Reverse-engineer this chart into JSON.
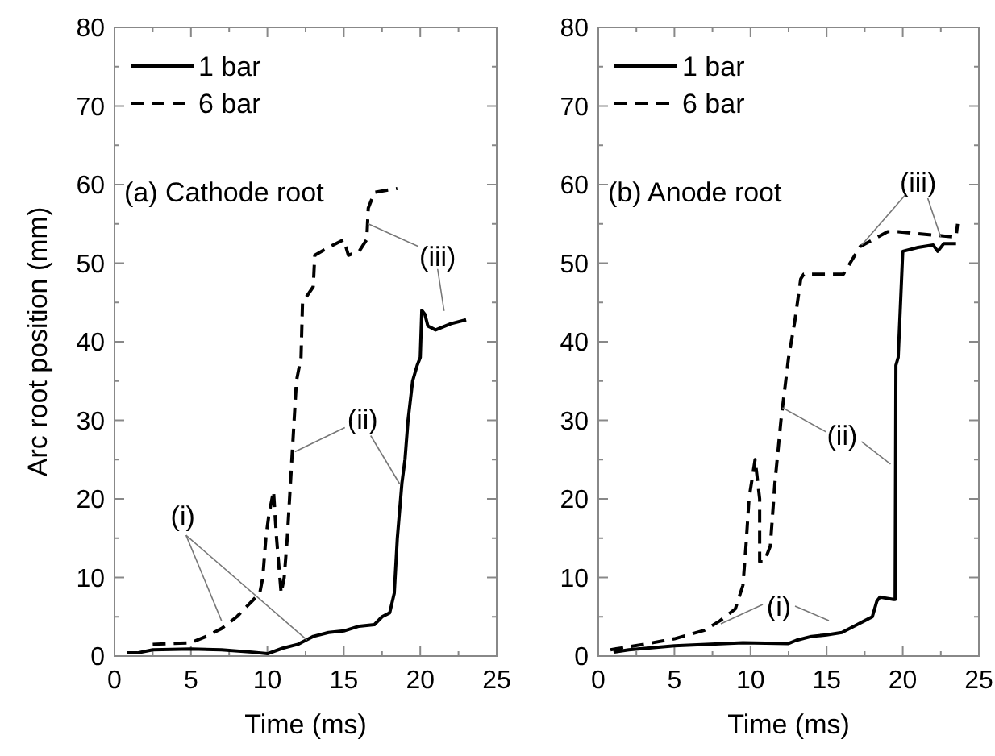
{
  "chart_data": [
    {
      "type": "line",
      "xlabel": "Time (ms)",
      "ylabel": "Arc root position (mm)",
      "xlim": [
        0,
        25
      ],
      "ylim": [
        0,
        80
      ],
      "xticks": [
        0,
        {
          "value": 2.5,
          "label": null
        },
        5,
        {
          "value": 7.5,
          "label": null
        },
        10,
        {
          "value": 12.5,
          "label": null
        },
        15,
        {
          "value": 17.5,
          "label": null
        },
        20,
        {
          "value": 22.5,
          "label": null
        },
        25
      ],
      "yticks": [
        0,
        {
          "value": 5,
          "label": null
        },
        10,
        {
          "value": 15,
          "label": null
        },
        20,
        {
          "value": 25,
          "label": null
        },
        30,
        {
          "value": 35,
          "label": null
        },
        40,
        {
          "value": 45,
          "label": null
        },
        50,
        {
          "value": 55,
          "label": null
        },
        60,
        {
          "value": 65,
          "label": null
        },
        70,
        {
          "value": 75,
          "label": null
        },
        80
      ],
      "legend": "top left",
      "grid": false,
      "annotations": [
        "(a) Cathode root",
        {
          "text": "(i)",
          "x": 7,
          "y": 4.5
        },
        {
          "text": "(ii)",
          "x": 11.8,
          "y": 26
        },
        {
          "text": "(iii)",
          "x": 16.6,
          "y": 55
        }
      ],
      "series": [
        {
          "name": "1 bar",
          "color": "#000000",
          "line_style": "solid",
          "x": [
            0.8,
            1.5,
            2.5,
            5,
            7,
            9,
            10,
            11,
            12,
            12.5,
            13,
            14,
            15,
            16,
            17,
            17.5,
            18,
            18.3,
            18.5,
            18.8,
            19,
            19.2,
            19.5,
            19.8,
            20,
            20.1,
            20.3,
            20.5,
            21,
            22,
            23
          ],
          "values": [
            0.4,
            0.4,
            0.8,
            0.9,
            0.8,
            0.5,
            0.3,
            1,
            1.5,
            2,
            2.5,
            3,
            3.2,
            3.8,
            4,
            5,
            5.5,
            8,
            15,
            22,
            25,
            30,
            35,
            37,
            38,
            44,
            43.5,
            42,
            41.5,
            42.3,
            42.8
          ]
        },
        {
          "name": "6 bar",
          "color": "#000000",
          "line_style": "dashed",
          "x": [
            2.5,
            5,
            6,
            7,
            8,
            9,
            9.5,
            9.7,
            9.9,
            10.1,
            10.4,
            10.6,
            10.9,
            11.1,
            11.3,
            11.6,
            11.9,
            12.2,
            12.3,
            13,
            13.1,
            14,
            15,
            15.3,
            16,
            16.5,
            16.6,
            17,
            18.5
          ],
          "values": [
            1.5,
            1.7,
            2.5,
            3.5,
            5,
            7,
            8,
            10,
            15,
            18,
            21,
            15,
            8,
            10,
            15,
            25,
            35,
            38,
            45,
            47,
            51,
            52,
            53,
            51,
            51.5,
            53,
            57,
            59,
            59.5
          ]
        }
      ]
    },
    {
      "type": "line",
      "xlabel": "Time (ms)",
      "xlim": [
        0,
        25
      ],
      "ylim": [
        0,
        80
      ],
      "xticks": [
        0,
        {
          "value": 2.5,
          "label": null
        },
        5,
        {
          "value": 7.5,
          "label": null
        },
        10,
        {
          "value": 12.5,
          "label": null
        },
        15,
        {
          "value": 17.5,
          "label": null
        },
        20,
        {
          "value": 22.5,
          "label": null
        },
        25
      ],
      "yticks": [
        0,
        {
          "value": 5,
          "label": null
        },
        10,
        {
          "value": 15,
          "label": null
        },
        20,
        {
          "value": 25,
          "label": null
        },
        30,
        {
          "value": 35,
          "label": null
        },
        40,
        {
          "value": 45,
          "label": null
        },
        50,
        {
          "value": 55,
          "label": null
        },
        60,
        {
          "value": 65,
          "label": null
        },
        70,
        {
          "value": 75,
          "label": null
        },
        80
      ],
      "legend": "top left",
      "grid": false,
      "annotations": [
        "(b) Anode root",
        {
          "text": "(i)",
          "x": 8.05,
          "y": 4.1
        },
        {
          "text": "(ii)",
          "x": 12.1,
          "y": 31.6
        },
        {
          "text": "(iii)",
          "x": 17.3,
          "y": 52.3
        }
      ],
      "series": [
        {
          "name": "1 bar",
          "color": "#000000",
          "line_style": "solid",
          "x": [
            1,
            2,
            5,
            9.5,
            12.5,
            13,
            14,
            15,
            16,
            17,
            17.5,
            18,
            18.3,
            18.5,
            19.4,
            19.5,
            19.55,
            19.7,
            20,
            21,
            22,
            22.3,
            22.7,
            23.5
          ],
          "values": [
            0.5,
            0.8,
            1.3,
            1.7,
            1.6,
            2,
            2.5,
            2.7,
            3,
            4,
            4.5,
            5,
            7,
            7.5,
            7.2,
            7.2,
            37,
            38,
            51.5,
            52,
            52.3,
            51.5,
            52.5,
            52.5
          ]
        },
        {
          "name": "6 bar",
          "color": "#000000",
          "line_style": "dashed",
          "x": [
            0.8,
            3,
            5,
            7,
            8,
            9,
            9.5,
            9.7,
            9.9,
            10.3,
            10.6,
            10.6,
            10.9,
            11.3,
            11.6,
            12,
            12.5,
            12.9,
            13.3,
            13.5,
            16.1,
            17.2,
            19,
            19.7,
            23.5,
            23.6
          ],
          "values": [
            0.8,
            1.5,
            2.2,
            3.3,
            4.5,
            6,
            9,
            14,
            20,
            25,
            20,
            12,
            12,
            14,
            22,
            30,
            38,
            42.5,
            48,
            48.6,
            48.6,
            52.1,
            54,
            54,
            53.3,
            55
          ]
        }
      ]
    }
  ]
}
